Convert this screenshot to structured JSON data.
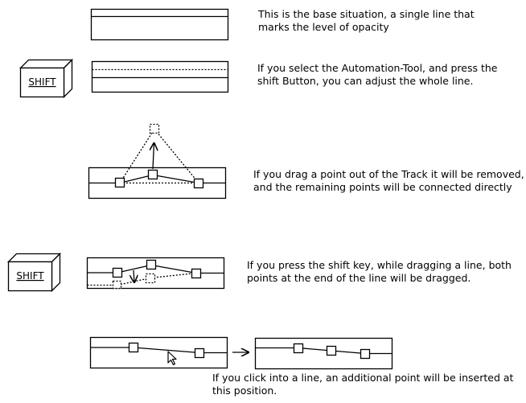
{
  "steps": [
    {
      "lines": [
        "This is the base situation, a single line that",
        "marks the level of opacity"
      ]
    },
    {
      "lines": [
        "If you select the Automation-Tool, and press the",
        "shift Button, you can adjust the whole line."
      ]
    },
    {
      "lines": [
        "If you drag a point out of the Track it will be removed,",
        "and the remaining points will be connected directly"
      ]
    },
    {
      "lines": [
        "If you press the shift key, while dragging a line, both",
        "points at the end of the line will be dragged."
      ]
    },
    {
      "lines": [
        "If you click into a line, an additional point will be inserted at",
        "this position."
      ]
    }
  ],
  "keys": {
    "shift": "SHIFT"
  }
}
